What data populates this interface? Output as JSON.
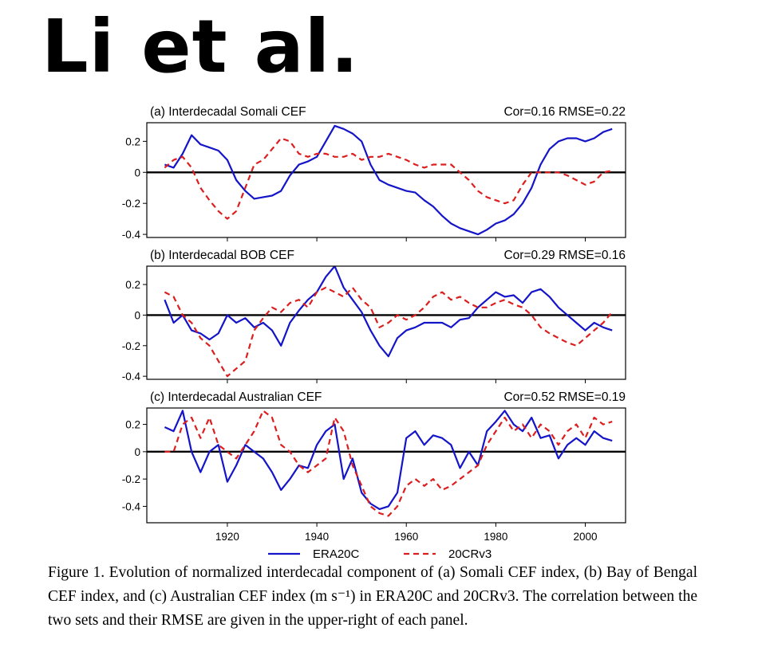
{
  "header": {
    "title": "Li et al."
  },
  "caption": "Figure 1. Evolution of normalized interdecadal component of (a) Somali CEF index, (b) Bay of Bengal CEF index, and (c) Australian CEF index (m s⁻¹) in ERA20C and 20CRv3. The correlation between the two sets and their RMSE are given in the upper-right of each panel.",
  "colors": {
    "ERA20C": "#1414c8",
    "20CRv3": "#dc1e1e",
    "zero_line": "#000000"
  },
  "chart_data": [
    {
      "type": "line",
      "title": "(a) Interdecadal Somali CEF",
      "stats": "Cor=0.16  RMSE=0.22",
      "xlim": [
        1902,
        2009
      ],
      "ylim": [
        -0.42,
        0.32
      ],
      "xticks": [
        1920,
        1940,
        1960,
        1980,
        2000
      ],
      "yticks": [
        0.2,
        0,
        -0.2,
        -0.4
      ],
      "ytick_labels": [
        "0.2",
        "0",
        "-0.2",
        "-0.4"
      ],
      "grid": false,
      "x": [
        1906,
        1908,
        1910,
        1912,
        1914,
        1916,
        1918,
        1920,
        1922,
        1924,
        1926,
        1928,
        1930,
        1932,
        1934,
        1936,
        1938,
        1940,
        1942,
        1944,
        1946,
        1948,
        1950,
        1952,
        1954,
        1956,
        1958,
        1960,
        1962,
        1964,
        1966,
        1968,
        1970,
        1972,
        1974,
        1976,
        1978,
        1980,
        1982,
        1984,
        1986,
        1988,
        1990,
        1992,
        1994,
        1996,
        1998,
        2000,
        2002,
        2004,
        2006
      ],
      "series": [
        {
          "name": "ERA20C",
          "values": [
            0.05,
            0.03,
            0.12,
            0.24,
            0.18,
            0.16,
            0.14,
            0.08,
            -0.05,
            -0.12,
            -0.17,
            -0.16,
            -0.15,
            -0.12,
            -0.02,
            0.05,
            0.07,
            0.1,
            0.2,
            0.3,
            0.28,
            0.25,
            0.2,
            0.05,
            -0.05,
            -0.08,
            -0.1,
            -0.12,
            -0.13,
            -0.18,
            -0.22,
            -0.28,
            -0.33,
            -0.36,
            -0.38,
            -0.4,
            -0.37,
            -0.33,
            -0.31,
            -0.27,
            -0.2,
            -0.1,
            0.05,
            0.15,
            0.2,
            0.22,
            0.22,
            0.2,
            0.22,
            0.26,
            0.28
          ]
        },
        {
          "name": "20CRv3",
          "values": [
            0.03,
            0.08,
            0.1,
            0.03,
            -0.1,
            -0.18,
            -0.25,
            -0.3,
            -0.25,
            -0.1,
            0.05,
            0.08,
            0.15,
            0.22,
            0.2,
            0.12,
            0.1,
            0.12,
            0.12,
            0.1,
            0.1,
            0.12,
            0.08,
            0.1,
            0.1,
            0.12,
            0.1,
            0.08,
            0.05,
            0.03,
            0.05,
            0.05,
            0.05,
            0.0,
            -0.05,
            -0.12,
            -0.16,
            -0.18,
            -0.2,
            -0.18,
            -0.08,
            0.0,
            0.0,
            0.0,
            0.0,
            -0.02,
            -0.05,
            -0.08,
            -0.06,
            0.0,
            0.01
          ]
        }
      ]
    },
    {
      "type": "line",
      "title": "(b) Interdecadal BOB CEF",
      "stats": "Cor=0.29  RMSE=0.16",
      "xlim": [
        1902,
        2009
      ],
      "ylim": [
        -0.42,
        0.32
      ],
      "xticks": [
        1920,
        1940,
        1960,
        1980,
        2000
      ],
      "yticks": [
        0.2,
        0,
        -0.2,
        -0.4
      ],
      "ytick_labels": [
        "0.2",
        "0",
        "-0.2",
        "-0.4"
      ],
      "grid": false,
      "x": [
        1906,
        1908,
        1910,
        1912,
        1914,
        1916,
        1918,
        1920,
        1922,
        1924,
        1926,
        1928,
        1930,
        1932,
        1934,
        1936,
        1938,
        1940,
        1942,
        1944,
        1946,
        1948,
        1950,
        1952,
        1954,
        1956,
        1958,
        1960,
        1962,
        1964,
        1966,
        1968,
        1970,
        1972,
        1974,
        1976,
        1978,
        1980,
        1982,
        1984,
        1986,
        1988,
        1990,
        1992,
        1994,
        1996,
        1998,
        2000,
        2002,
        2004,
        2006
      ],
      "series": [
        {
          "name": "ERA20C",
          "values": [
            0.1,
            -0.05,
            0.0,
            -0.1,
            -0.12,
            -0.16,
            -0.12,
            0.0,
            -0.05,
            -0.02,
            -0.08,
            -0.05,
            -0.1,
            -0.2,
            -0.05,
            0.03,
            0.1,
            0.15,
            0.25,
            0.32,
            0.18,
            0.1,
            0.02,
            -0.1,
            -0.2,
            -0.27,
            -0.15,
            -0.1,
            -0.08,
            -0.05,
            -0.05,
            -0.05,
            -0.08,
            -0.03,
            -0.02,
            0.05,
            0.1,
            0.15,
            0.12,
            0.13,
            0.08,
            0.15,
            0.17,
            0.12,
            0.05,
            0.0,
            -0.05,
            -0.1,
            -0.05,
            -0.08,
            -0.1
          ]
        },
        {
          "name": "20CRv3",
          "values": [
            0.15,
            0.12,
            0.0,
            -0.05,
            -0.15,
            -0.2,
            -0.3,
            -0.4,
            -0.35,
            -0.3,
            -0.1,
            -0.02,
            0.05,
            0.02,
            0.08,
            0.1,
            0.05,
            0.15,
            0.18,
            0.15,
            0.12,
            0.18,
            0.1,
            0.05,
            -0.08,
            -0.05,
            0.0,
            -0.03,
            0.0,
            0.05,
            0.12,
            0.15,
            0.1,
            0.12,
            0.08,
            0.05,
            0.05,
            0.08,
            0.1,
            0.07,
            0.05,
            0.0,
            -0.08,
            -0.12,
            -0.15,
            -0.18,
            -0.2,
            -0.15,
            -0.1,
            -0.05,
            0.02
          ]
        }
      ]
    },
    {
      "type": "line",
      "title": "(c) Interdecadal Australian CEF",
      "stats": "Cor=0.52  RMSE=0.19",
      "xlim": [
        1902,
        2009
      ],
      "ylim": [
        -0.52,
        0.32
      ],
      "xticks": [
        1920,
        1940,
        1960,
        1980,
        2000
      ],
      "xtick_labels": [
        "1920",
        "1940",
        "1960",
        "1980",
        "2000"
      ],
      "yticks": [
        0.2,
        0,
        -0.2,
        -0.4
      ],
      "ytick_labels": [
        "0.2",
        "0",
        "-0.2",
        "-0.4"
      ],
      "grid": false,
      "x": [
        1906,
        1908,
        1910,
        1912,
        1914,
        1916,
        1918,
        1920,
        1922,
        1924,
        1926,
        1928,
        1930,
        1932,
        1934,
        1936,
        1938,
        1940,
        1942,
        1944,
        1946,
        1948,
        1950,
        1952,
        1954,
        1956,
        1958,
        1960,
        1962,
        1964,
        1966,
        1968,
        1970,
        1972,
        1974,
        1976,
        1978,
        1980,
        1982,
        1984,
        1986,
        1988,
        1990,
        1992,
        1994,
        1996,
        1998,
        2000,
        2002,
        2004,
        2006
      ],
      "series": [
        {
          "name": "ERA20C",
          "values": [
            0.18,
            0.15,
            0.3,
            0.0,
            -0.15,
            0.0,
            0.05,
            -0.22,
            -0.1,
            0.05,
            0.0,
            -0.05,
            -0.15,
            -0.28,
            -0.2,
            -0.1,
            -0.12,
            0.05,
            0.15,
            0.2,
            -0.2,
            -0.05,
            -0.3,
            -0.38,
            -0.42,
            -0.4,
            -0.3,
            0.1,
            0.15,
            0.05,
            0.12,
            0.1,
            0.05,
            -0.12,
            0.0,
            -0.1,
            0.15,
            0.22,
            0.3,
            0.2,
            0.15,
            0.25,
            0.1,
            0.12,
            -0.05,
            0.05,
            0.1,
            0.05,
            0.15,
            0.1,
            0.08
          ]
        },
        {
          "name": "20CRv3",
          "values": [
            0.0,
            0.0,
            0.2,
            0.25,
            0.1,
            0.25,
            0.05,
            0.0,
            -0.05,
            0.05,
            0.15,
            0.3,
            0.25,
            0.05,
            0.0,
            -0.1,
            -0.15,
            -0.1,
            -0.05,
            0.25,
            0.15,
            -0.1,
            -0.25,
            -0.4,
            -0.45,
            -0.47,
            -0.4,
            -0.25,
            -0.2,
            -0.25,
            -0.2,
            -0.28,
            -0.25,
            -0.2,
            -0.15,
            -0.1,
            0.05,
            0.15,
            0.25,
            0.15,
            0.2,
            0.1,
            0.2,
            0.15,
            0.05,
            0.15,
            0.2,
            0.1,
            0.25,
            0.2,
            0.22
          ]
        }
      ]
    }
  ],
  "legend": {
    "items": [
      "ERA20C",
      "20CRv3"
    ]
  }
}
